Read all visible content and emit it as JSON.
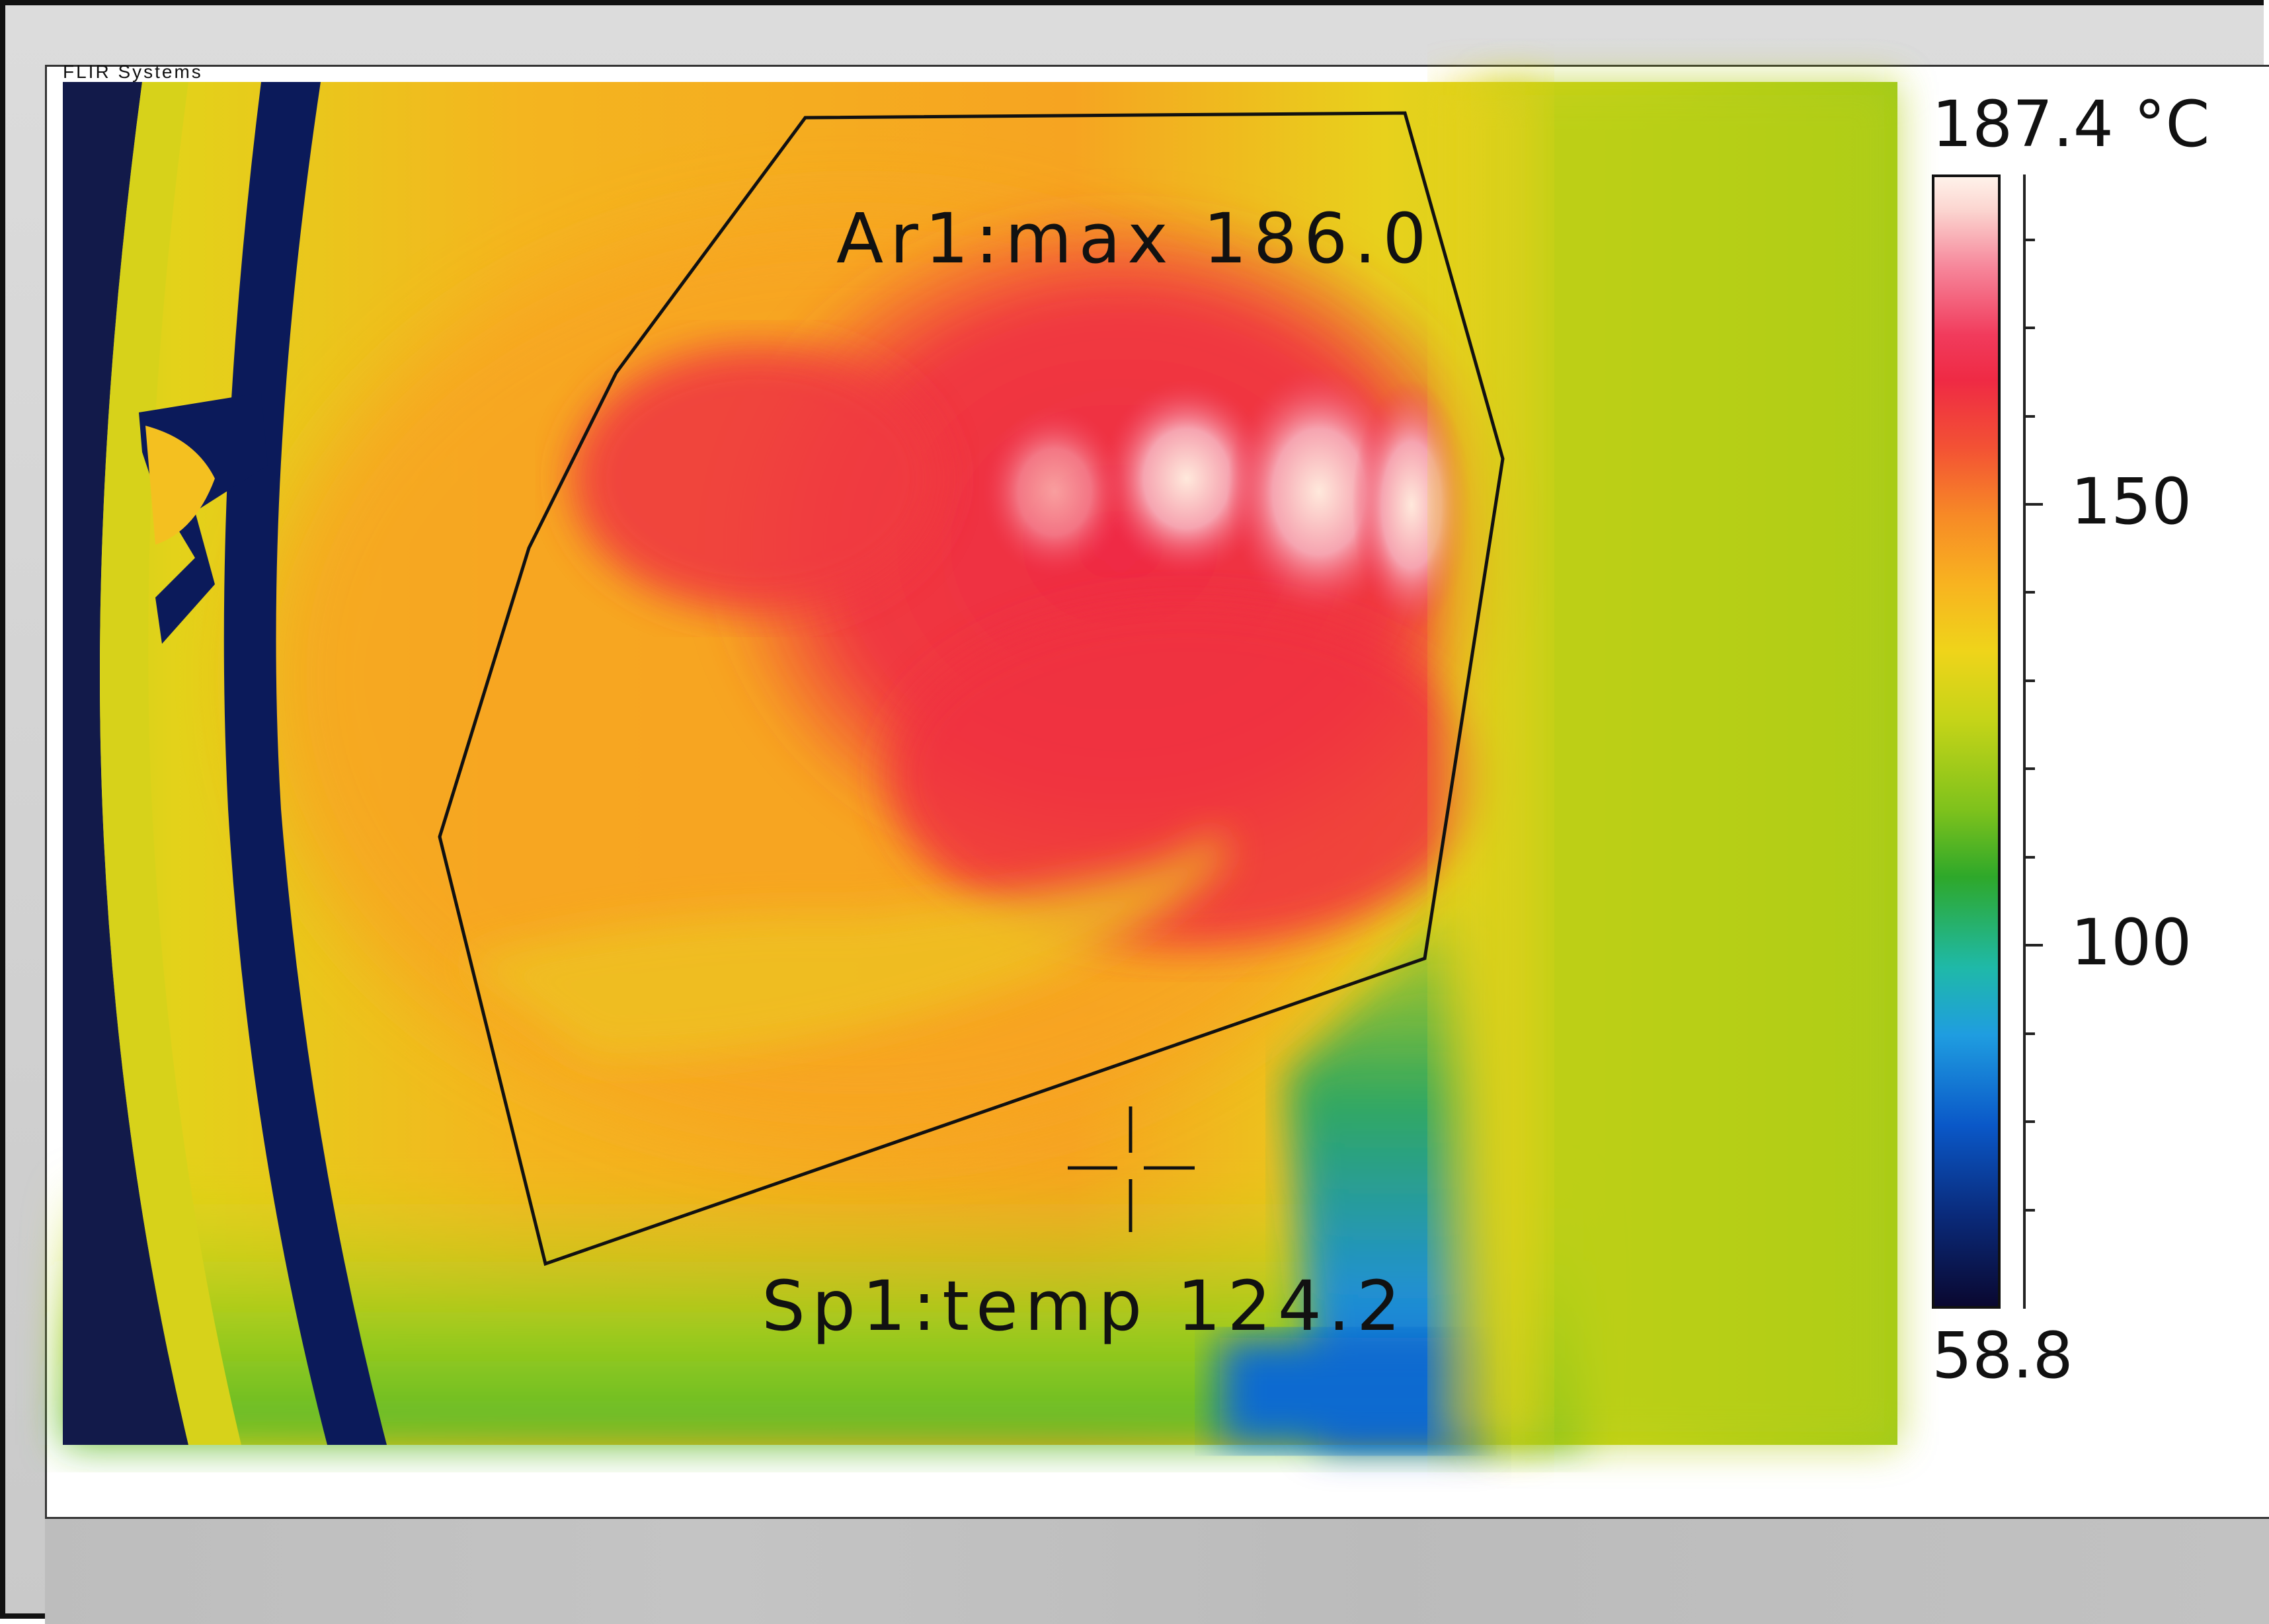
{
  "vendor": "FLIR Systems",
  "measurements": {
    "area": {
      "label": "Ar1:max 186.0",
      "name": "Ar1"
    },
    "spot": {
      "label": "Sp1:temp 124.2",
      "name": "Sp1"
    }
  },
  "scale": {
    "max_label": "187.4 °C",
    "min_label": "58.8",
    "min": 58.8,
    "max": 187.4,
    "ticks": [
      {
        "value": 150,
        "label": "150"
      },
      {
        "value": 100,
        "label": "100"
      }
    ],
    "palette": "iron-rainbow"
  }
}
